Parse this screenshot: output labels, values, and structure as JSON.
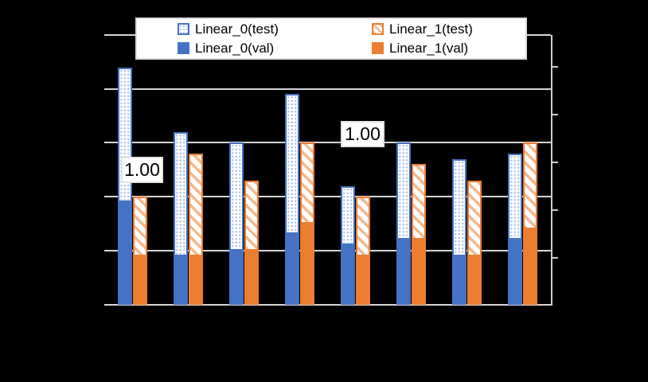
{
  "chart_data": {
    "type": "bar",
    "title": "",
    "categories": [
      "",
      "",
      "",
      "",
      "",
      "",
      "",
      ""
    ],
    "series": [
      {
        "name": "Linear_0(test)",
        "color": "#4472C4",
        "fill": "dot-pattern",
        "values": [
          1.24,
          1.12,
          1.1,
          1.19,
          1.02,
          1.1,
          1.07,
          1.08
        ]
      },
      {
        "name": "Linear_1(test)",
        "color": "#ED7D31",
        "fill": "stripe-pattern",
        "values": [
          1.0,
          1.08,
          1.03,
          1.1,
          1.0,
          1.06,
          1.03,
          1.1
        ]
      },
      {
        "name": "Linear_0(val)",
        "color": "#4472C4",
        "fill": "solid",
        "values": [
          0.99,
          0.89,
          0.9,
          0.93,
          0.91,
          0.92,
          0.89,
          0.92
        ]
      },
      {
        "name": "Linear_1(val)",
        "color": "#ED7D31",
        "fill": "solid",
        "values": [
          0.89,
          0.89,
          0.9,
          0.95,
          0.89,
          0.92,
          0.89,
          0.94
        ]
      }
    ],
    "ylim": [
      0.8,
      1.3
    ],
    "ytick_step": 0.1,
    "grid": true,
    "axis_tick_labels_visible": false,
    "legend_position": "top",
    "data_labels": [
      {
        "text": "1.00",
        "series": "Linear_1(test)",
        "category_index": 0
      },
      {
        "text": "1.00",
        "series": "Linear_1(test)",
        "category_index": 4
      }
    ],
    "colors": {
      "blue": "#4472C4",
      "blue_pattern_light": "#AEC4E8",
      "orange": "#ED7D31",
      "orange_pattern_light": "#F5B78C",
      "gridline": "#D6D6D6",
      "background": "#000000",
      "legend_background": "#FFFFFF",
      "text": "#000000"
    }
  }
}
